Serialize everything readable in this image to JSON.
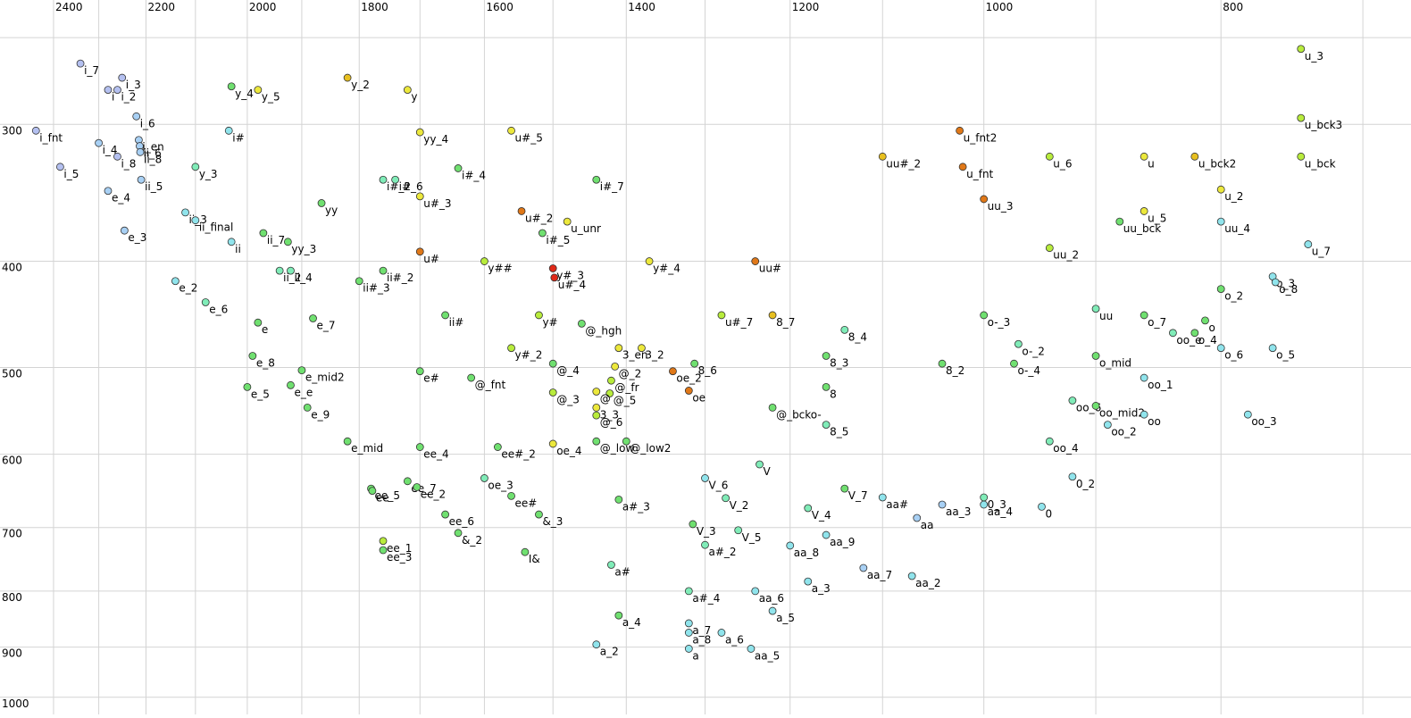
{
  "chart_data": {
    "type": "scatter",
    "log_x": true,
    "log_y": true,
    "x_reversed": true,
    "grid": true,
    "xlim": [
      2524,
      669
    ],
    "ylim": [
      231,
      1027
    ],
    "xticks": [
      2400,
      2200,
      2000,
      1800,
      1600,
      1400,
      1200,
      1000,
      800
    ],
    "x_minor_ticks": [
      2300,
      2100,
      1900,
      1700,
      1500,
      1300,
      1100,
      900,
      700
    ],
    "yticks": [
      300,
      400,
      500,
      600,
      700,
      800,
      900,
      1000
    ],
    "y_minor_ticks": [
      250
    ],
    "labels": [
      "i_7",
      "i_3",
      "i_2",
      "i",
      "i_6",
      "i_en",
      "ii_6",
      "ii_8",
      "i_fnt",
      "i_5",
      "i_4",
      "i_8",
      "ii_5",
      "e_4",
      "ii_3",
      "ii_final",
      "e_3",
      "i#",
      "y_3",
      "y_4",
      "y_5",
      "ii",
      "ii_7",
      "yy_3",
      "yy",
      "ii_2",
      "ii_4",
      "e_2",
      "e_6",
      "e",
      "e_7",
      "ii#_3",
      "ii#_2",
      "e_8",
      "e_5",
      "e_mid2",
      "e_e",
      "e_9",
      "e_mid",
      "ii#",
      "i#_2",
      "i#_6",
      "yy_4",
      "i#_4",
      "u#_3",
      "u#",
      "y_2",
      "y",
      "y##",
      "u#_5",
      "u#_2",
      "u_unr",
      "i#_5",
      "y#_3",
      "u#_4",
      "i#_7",
      "y#",
      "@_hgh",
      "y#_2",
      "@_4",
      "@_fnt",
      "@_3",
      "e#",
      "ee_4",
      "ee#_2",
      "oe_4",
      "oe_3",
      "ee#",
      "&_3",
      "ee_7",
      "ee_2",
      "ee_5",
      "ee",
      "ee_6",
      "&_2",
      "ee_1",
      "ee_3",
      "I&",
      "3_en",
      "3_2",
      "@_2",
      "@_fr",
      "@_5",
      "@",
      "3_3",
      "@_6",
      "@_low",
      "@_low2",
      "oe_2",
      "oe",
      "8_6",
      "u#_7",
      "8_7",
      "uu#",
      "y#_4",
      "8_4",
      "8_3",
      "8",
      "8_5",
      "@_bcko-",
      "V",
      "V_6",
      "V_2",
      "V_7",
      "V_4",
      "V_3",
      "V_5",
      "a#_3",
      "a#_2",
      "aa_8",
      "aa_9",
      "a#",
      "a_3",
      "aa_6",
      "a#_4",
      "a_5",
      "a_4",
      "a_7",
      "a_8",
      "a_6",
      "a_2",
      "a",
      "aa_5",
      "aa_7",
      "aa_2",
      "aa#",
      "aa_3",
      "aa",
      "aa_4",
      "0_3",
      "0",
      "0_2",
      "oo_4",
      "oo_6",
      "oo_mid2",
      "oo",
      "oo_2",
      "oo_1",
      "oo_3",
      "o_mid",
      "o-_4",
      "o-_2",
      "o-_3",
      "8_2",
      "uu",
      "o_7",
      "oo_e",
      "o_4",
      "o",
      "o_6",
      "o_5",
      "o_3",
      "o_8",
      "o_2",
      "uu_2",
      "uu_3",
      "uu_bck",
      "u_5",
      "uu_4",
      "u_2",
      "u_7",
      "u_bck",
      "u_bck3",
      "u_3",
      "u",
      "u_bck2",
      "u_6",
      "uu#_2",
      "u_fnt2",
      "u_fnt"
    ],
    "x": [
      2340,
      2250,
      2260,
      2280,
      2220,
      2215,
      2213,
      2212,
      2440,
      2385,
      2300,
      2260,
      2210,
      2280,
      2120,
      2100,
      2245,
      2035,
      2100,
      2030,
      1980,
      2030,
      1970,
      1925,
      1865,
      1940,
      1920,
      2140,
      2080,
      1980,
      1880,
      1800,
      1760,
      1990,
      2000,
      1900,
      1920,
      1890,
      1820,
      1660,
      1760,
      1740,
      1700,
      1640,
      1700,
      1700,
      1820,
      1720,
      1600,
      1560,
      1545,
      1480,
      1515,
      1500,
      1498,
      1440,
      1520,
      1460,
      1560,
      1500,
      1620,
      1500,
      1700,
      1700,
      1580,
      1500,
      1600,
      1560,
      1520,
      1720,
      1705,
      1780,
      1778,
      1660,
      1640,
      1760,
      1760,
      1540,
      1410,
      1380,
      1415,
      1420,
      1422,
      1440,
      1440,
      1440,
      1440,
      1400,
      1340,
      1320,
      1313,
      1280,
      1220,
      1240,
      1370,
      1140,
      1160,
      1160,
      1160,
      1220,
      1235,
      1300,
      1275,
      1140,
      1180,
      1315,
      1260,
      1410,
      1300,
      1200,
      1160,
      1420,
      1180,
      1240,
      1320,
      1220,
      1410,
      1320,
      1320,
      1280,
      1440,
      1320,
      1245,
      1120,
      1070,
      1100,
      1040,
      1065,
      1000,
      1000,
      947,
      920,
      940,
      920,
      900,
      860,
      890,
      860,
      780,
      900,
      972,
      968,
      1000,
      1040,
      900,
      860,
      837,
      820,
      812,
      800,
      762,
      762,
      760,
      800,
      940,
      1000,
      880,
      860,
      800,
      800,
      737,
      742,
      742,
      742,
      860,
      820,
      940,
      1100,
      1023,
      1020
    ],
    "y": [
      264,
      272,
      279,
      279,
      295,
      310,
      314,
      318,
      304,
      328,
      312,
      321,
      337,
      345,
      361,
      367,
      375,
      304,
      328,
      277,
      279,
      384,
      377,
      384,
      354,
      408,
      408,
      417,
      436,
      455,
      451,
      417,
      408,
      488,
      521,
      503,
      519,
      544,
      584,
      448,
      337,
      337,
      305,
      329,
      349,
      392,
      272,
      279,
      400,
      304,
      360,
      368,
      377,
      406,
      414,
      337,
      448,
      456,
      480,
      496,
      511,
      527,
      504,
      591,
      591,
      587,
      631,
      655,
      681,
      635,
      643,
      645,
      648,
      681,
      708,
      720,
      734,
      737,
      480,
      480,
      499,
      514,
      528,
      526,
      544,
      553,
      584,
      584,
      504,
      525,
      496,
      448,
      448,
      400,
      400,
      462,
      488,
      521,
      564,
      544,
      613,
      631,
      658,
      645,
      672,
      695,
      704,
      660,
      726,
      727,
      711,
      757,
      784,
      800,
      800,
      834,
      842,
      856,
      873,
      873,
      895,
      903,
      903,
      762,
      775,
      657,
      667,
      686,
      667,
      657,
      670,
      629,
      584,
      536,
      542,
      552,
      564,
      511,
      552,
      488,
      496,
      476,
      448,
      496,
      442,
      448,
      465,
      465,
      453,
      480,
      480,
      413,
      418,
      424,
      389,
      351,
      368,
      360,
      368,
      344,
      386,
      321,
      296,
      256,
      321,
      321,
      321,
      321,
      304,
      328
    ],
    "colors": [
      "#b4c0f0",
      "#b4c0f0",
      "#b4c0f0",
      "#b4c0f0",
      "#a8d0f4",
      "#a8d0f4",
      "#a8d0f4",
      "#a8d0f4",
      "#b4c0f0",
      "#b4c0f0",
      "#a8d0f4",
      "#b4c0f0",
      "#a8d0f4",
      "#a8d0f4",
      "#90e4ec",
      "#90e4ec",
      "#a8d0f4",
      "#90e4ec",
      "#80ecb8",
      "#70e070",
      "#ece83c",
      "#90e4ec",
      "#70e070",
      "#70e070",
      "#70e070",
      "#80ecb8",
      "#80ecb8",
      "#90e4ec",
      "#80ecb8",
      "#70e070",
      "#70e070",
      "#70e070",
      "#70e070",
      "#70e070",
      "#70e070",
      "#70e070",
      "#70e070",
      "#70e070",
      "#70e070",
      "#70e070",
      "#80ecb8",
      "#80ecb8",
      "#ece83c",
      "#70e070",
      "#ece83c",
      "#e07818",
      "#e8c020",
      "#ece83c",
      "#b8ec3c",
      "#ece83c",
      "#e07818",
      "#ece83c",
      "#70e070",
      "#e02818",
      "#e02818",
      "#70e070",
      "#b8ec3c",
      "#70e070",
      "#b8ec3c",
      "#70e070",
      "#70e070",
      "#b8ec3c",
      "#70e070",
      "#70e070",
      "#70e070",
      "#ece83c",
      "#80ecb8",
      "#70e070",
      "#70e070",
      "#70e070",
      "#70e070",
      "#70e070",
      "#70e070",
      "#70e070",
      "#70e070",
      "#b8ec3c",
      "#70e070",
      "#70e070",
      "#ece83c",
      "#ece83c",
      "#ece83c",
      "#b8ec3c",
      "#b8ec3c",
      "#ece83c",
      "#ece83c",
      "#b8ec3c",
      "#70e070",
      "#70e070",
      "#e07818",
      "#e07818",
      "#70e070",
      "#b8ec3c",
      "#e8c020",
      "#e07818",
      "#ece83c",
      "#80ecb8",
      "#70e070",
      "#70e070",
      "#80ecb8",
      "#70e070",
      "#80ecb8",
      "#90e4ec",
      "#80ecb8",
      "#70e070",
      "#80ecb8",
      "#70e070",
      "#80ecb8",
      "#70e070",
      "#80ecb8",
      "#90e4ec",
      "#90e4ec",
      "#80ecb8",
      "#90e4ec",
      "#90e4ec",
      "#80ecb8",
      "#90e4ec",
      "#70e070",
      "#90e4ec",
      "#90e4ec",
      "#90e4ec",
      "#90e4ec",
      "#90e4ec",
      "#90e4ec",
      "#a8d0f4",
      "#90e4ec",
      "#90e4ec",
      "#a8d0f4",
      "#a8d0f4",
      "#90e4ec",
      "#80ecb8",
      "#90e4ec",
      "#90e4ec",
      "#80ecb8",
      "#80ecb8",
      "#70e070",
      "#90e4ec",
      "#90e4ec",
      "#90e4ec",
      "#90e4ec",
      "#70e070",
      "#70e070",
      "#80ecb8",
      "#70e070",
      "#70e070",
      "#80ecb8",
      "#70e070",
      "#80ecb8",
      "#70e070",
      "#70e070",
      "#90e4ec",
      "#90e4ec",
      "#90e4ec",
      "#90e4ec",
      "#70e070",
      "#b8ec3c",
      "#e07818",
      "#70e070",
      "#ece83c",
      "#90e4ec",
      "#ece83c",
      "#90e4ec",
      "#b8ec3c",
      "#b8ec3c",
      "#b8ec3c",
      "#ece83c",
      "#e8c020",
      "#b8ec3c",
      "#e8c020",
      "#e07818",
      "#e07818"
    ]
  }
}
